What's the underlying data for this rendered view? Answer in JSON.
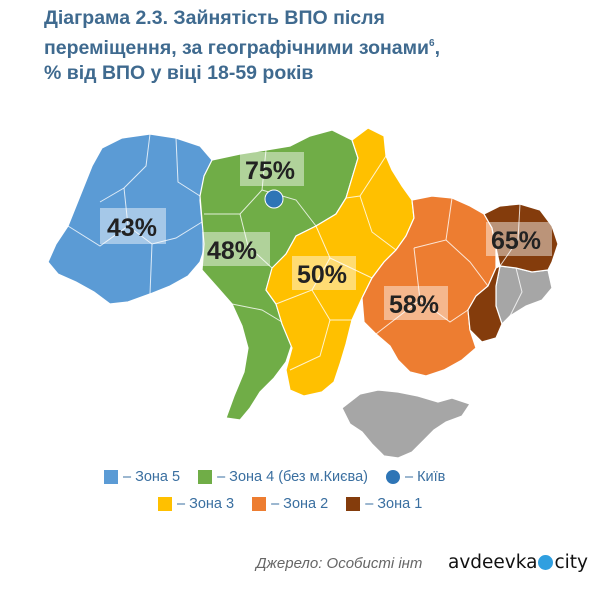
{
  "title": {
    "line1": "Діаграма 2.3. Зайнятість ВПО після",
    "line2": "переміщення, за географічними зонами",
    "line2_sup": "6",
    "line2_end": ",",
    "line3": "% від ВПО у віці 18-59 років"
  },
  "zones": [
    {
      "id": "zone5",
      "label": "43%",
      "value": 43,
      "color": "#5b9bd5"
    },
    {
      "id": "zone4",
      "label": "48%",
      "value": 48,
      "color": "#70ad47"
    },
    {
      "id": "kyiv",
      "label": "75%",
      "value": 75,
      "color": "#2e75b6"
    },
    {
      "id": "zone3",
      "label": "50%",
      "value": 50,
      "color": "#ffc000"
    },
    {
      "id": "zone2",
      "label": "58%",
      "value": 58,
      "color": "#ed7d31"
    },
    {
      "id": "zone1",
      "label": "65%",
      "value": 65,
      "color": "#843c0c"
    }
  ],
  "occupied_color": "#a6a6a6",
  "legend": {
    "row1": [
      {
        "label": "– Зона 5",
        "color": "#5b9bd5"
      },
      {
        "label": "– Зона 4 (без м.Києва)",
        "color": "#70ad47"
      },
      {
        "label": "– Київ",
        "color": "#2e75b6",
        "shape": "dot"
      }
    ],
    "row2": [
      {
        "label": "– Зона 3",
        "color": "#ffc000"
      },
      {
        "label": "– Зона 2",
        "color": "#ed7d31"
      },
      {
        "label": "– Зона 1",
        "color": "#843c0c"
      }
    ]
  },
  "source": "Джерело: Особисті інт",
  "watermark": {
    "left": "avdeevka",
    "right": "city"
  }
}
